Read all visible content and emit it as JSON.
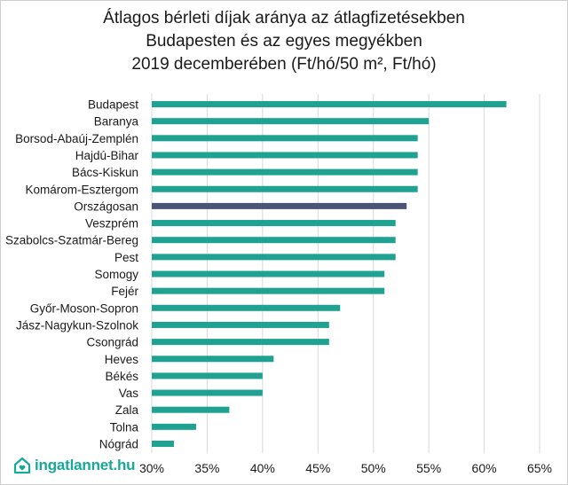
{
  "chart_data": {
    "type": "bar",
    "orientation": "horizontal",
    "title_lines": [
      "Átlagos bérleti díjak aránya az átlagfizetésekben",
      "Budapesten és az egyes megyékben",
      "2019 decemberében  (Ft/hó/50 m², Ft/hó)"
    ],
    "categories": [
      "Budapest",
      "Baranya",
      "Borsod-Abaúj-Zemplén",
      "Hajdú-Bihar",
      "Bács-Kiskun",
      "Komárom-Esztergom",
      "Országosan",
      "Veszprém",
      "Szabolcs-Szatmár-Bereg",
      "Pest",
      "Somogy",
      "Fejér",
      "Győr-Moson-Sopron",
      "Jász-Nagykun-Szolnok",
      "Csongrád",
      "Heves",
      "Békés",
      "Vas",
      "Zala",
      "Tolna",
      "Nógrád"
    ],
    "values": [
      62,
      55,
      54,
      54,
      54,
      54,
      53,
      52,
      52,
      52,
      51,
      51,
      47,
      46,
      46,
      41,
      40,
      40,
      37,
      34,
      32
    ],
    "highlight_index": 6,
    "xlim": [
      30,
      65
    ],
    "x_ticks": [
      "30%",
      "35%",
      "40%",
      "45%",
      "50%",
      "55%",
      "60%",
      "65%"
    ],
    "grid": true,
    "colors": {
      "bar": "#1fa291",
      "highlight": "#4a5578",
      "grid": "#d9d9d9",
      "text": "#1a1a1a"
    }
  },
  "logo": {
    "text": "ingatlannet.hu",
    "icon": "house-heart-icon",
    "color": "#18a89a"
  }
}
